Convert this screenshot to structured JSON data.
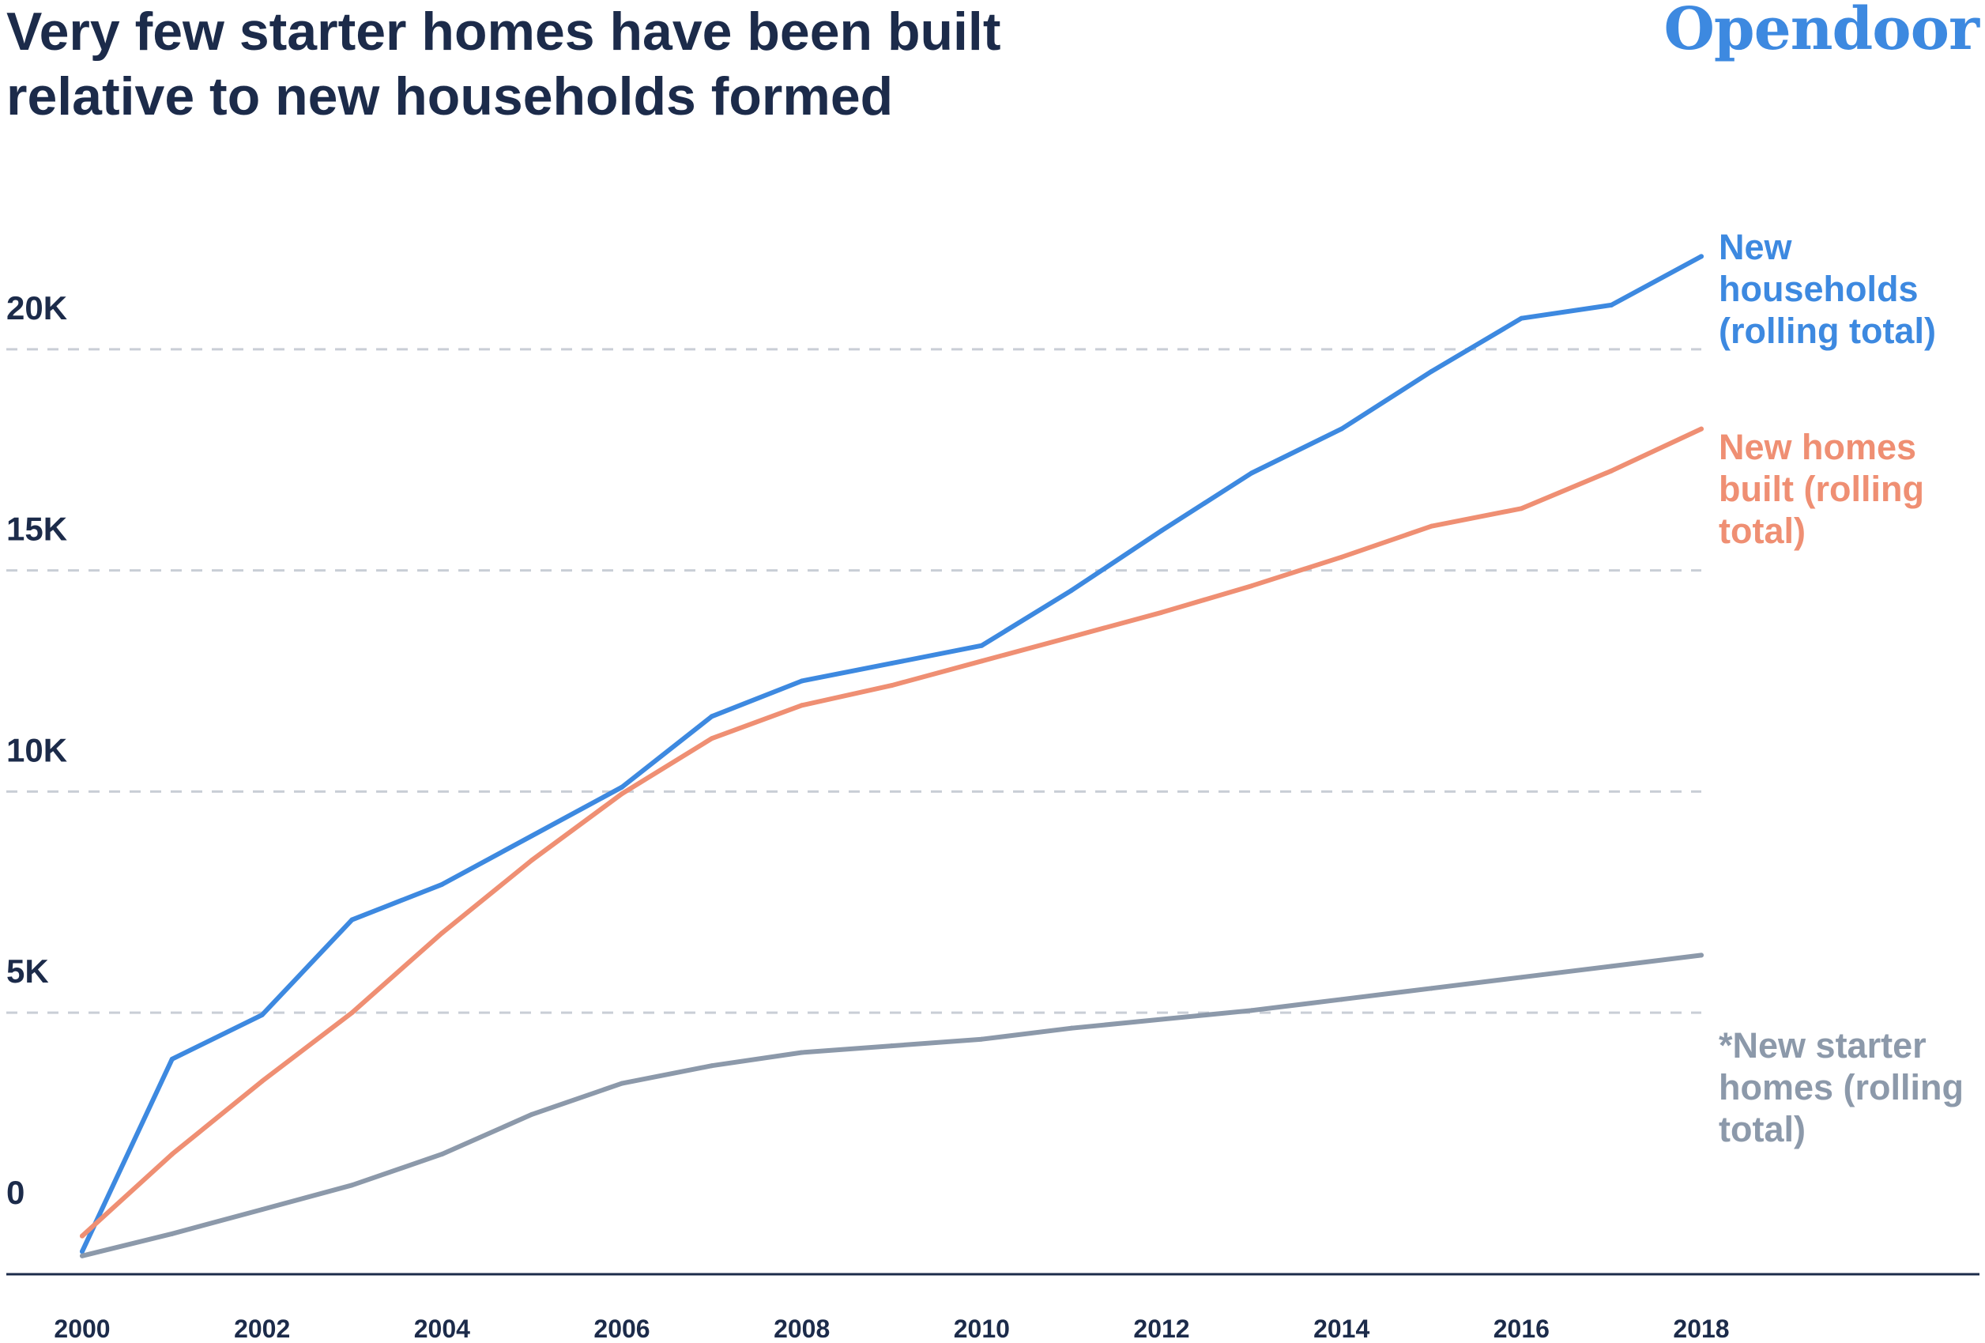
{
  "header": {
    "title_line1": "Very few starter homes have been built",
    "title_line2": "relative to new households formed",
    "brand": "Opendoor"
  },
  "chart_data": {
    "type": "line",
    "title": "Very few starter homes have been built relative to new households formed",
    "x": [
      2000,
      2001,
      2002,
      2003,
      2004,
      2005,
      2006,
      2007,
      2008,
      2009,
      2010,
      2011,
      2012,
      2013,
      2014,
      2015,
      2016,
      2017,
      2018
    ],
    "xticks": [
      "2000",
      "2002",
      "2004",
      "2006",
      "2008",
      "2010",
      "2012",
      "2014",
      "2016",
      "2018"
    ],
    "yticks": [
      {
        "value": 0,
        "label": "0"
      },
      {
        "value": 5000,
        "label": "5K"
      },
      {
        "value": 10000,
        "label": "10K"
      },
      {
        "value": 15000,
        "label": "15K"
      },
      {
        "value": 20000,
        "label": "20K"
      }
    ],
    "ylim": [
      -700,
      22000
    ],
    "grid": "dashed horizontal",
    "series": [
      {
        "name": "New households (rolling total)",
        "label_lines": [
          "New",
          "households",
          "(rolling total)"
        ],
        "color": "#3d89e0",
        "values": [
          -400,
          3950,
          4950,
          7100,
          7900,
          9000,
          10100,
          11700,
          12500,
          12900,
          13300,
          14550,
          15900,
          17200,
          18200,
          19500,
          20700,
          21000,
          22100
        ]
      },
      {
        "name": "New homes built (rolling total)",
        "label_lines": [
          "New homes",
          "built (rolling",
          "total)"
        ],
        "color": "#ef8f73",
        "values": [
          -50,
          1800,
          3450,
          5000,
          6800,
          8450,
          9950,
          11200,
          11950,
          12400,
          12950,
          13500,
          14050,
          14650,
          15300,
          16000,
          16400,
          17250,
          18200
        ]
      },
      {
        "name": "*New starter homes (rolling total)",
        "label_lines": [
          "*New starter",
          "homes (rolling",
          "total)"
        ],
        "color": "#8c99aa",
        "values": [
          -500,
          0,
          550,
          1100,
          1800,
          2700,
          3400,
          3800,
          4100,
          4250,
          4400,
          4650,
          4850,
          5050,
          5300,
          5550,
          5800,
          6050,
          6300
        ]
      }
    ]
  }
}
